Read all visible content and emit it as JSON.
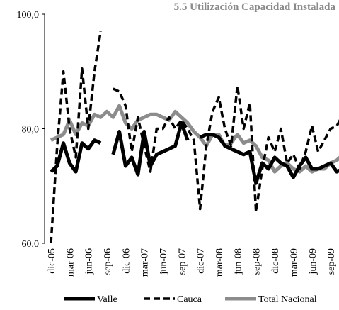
{
  "chart_data": {
    "type": "line",
    "title": "5.5 Utilización Capacidad Instalada",
    "categories": [
      "dic-05",
      null,
      null,
      "mar-06",
      null,
      null,
      "jun-06",
      null,
      null,
      "sep-06",
      null,
      null,
      "dic-06",
      null,
      null,
      "mar-07",
      null,
      null,
      "jun-07",
      null,
      null,
      "sep-07",
      null,
      null,
      "dic-07",
      null,
      null,
      "mar-08",
      null,
      null,
      "jun-08",
      null,
      null,
      "sep-08",
      null,
      null,
      "dic-08",
      null,
      null,
      "mar-09",
      null,
      null,
      "jun-09",
      null,
      null,
      "sep-09",
      null,
      null
    ],
    "series": [
      {
        "name": "Valle",
        "color": "#000000",
        "line_style": "solid",
        "values": [
          72.5,
          73.5,
          77.5,
          74,
          72.5,
          77.5,
          76.5,
          78,
          77.5,
          null,
          75.5,
          79.5,
          73.5,
          75,
          72,
          79.5,
          73.5,
          75.5,
          76,
          76.5,
          77,
          81,
          78,
          null,
          78.5,
          79,
          79,
          78.5,
          77,
          76.5,
          76,
          75.5,
          76,
          70.5,
          74,
          73,
          75,
          74,
          73.5,
          71.5,
          73.5,
          75,
          73,
          73,
          73.5,
          74,
          72.5,
          73
        ]
      },
      {
        "name": "Cauca",
        "color": "#000000",
        "line_style": "dashed",
        "values": [
          60,
          77,
          90,
          80,
          75,
          90.5,
          80,
          90,
          97,
          null,
          87,
          86.5,
          84,
          76,
          82,
          77,
          72.5,
          80,
          80,
          82,
          80,
          81.5,
          80,
          78,
          66,
          77,
          83,
          85.5,
          80,
          77,
          87.5,
          80,
          84.5,
          65.5,
          73,
          78.5,
          76,
          80,
          74,
          75.5,
          73,
          76,
          80.5,
          76,
          78,
          80,
          80.5,
          82.5
        ]
      },
      {
        "name": "Total Nacional",
        "color": "#8c8c8c",
        "line_style": "solid",
        "values": [
          78,
          78.5,
          79,
          81.5,
          79,
          81,
          80.5,
          82.5,
          82,
          83,
          82,
          84,
          81,
          80,
          81.5,
          82,
          82.5,
          82.5,
          82,
          81.5,
          83,
          82,
          81,
          79.5,
          78.5,
          77,
          79,
          79,
          77,
          77.5,
          79,
          77.5,
          78,
          77,
          75,
          74.5,
          72.5,
          73.5,
          74,
          73,
          72.5,
          73.5,
          72.5,
          73,
          73,
          74,
          74.5,
          75.5
        ]
      }
    ],
    "ylim": [
      60,
      100
    ],
    "yticks": [
      {
        "value": 60,
        "label": "60,0"
      },
      {
        "value": 80,
        "label": "80,0"
      },
      {
        "value": 100,
        "label": "100,0"
      }
    ]
  }
}
